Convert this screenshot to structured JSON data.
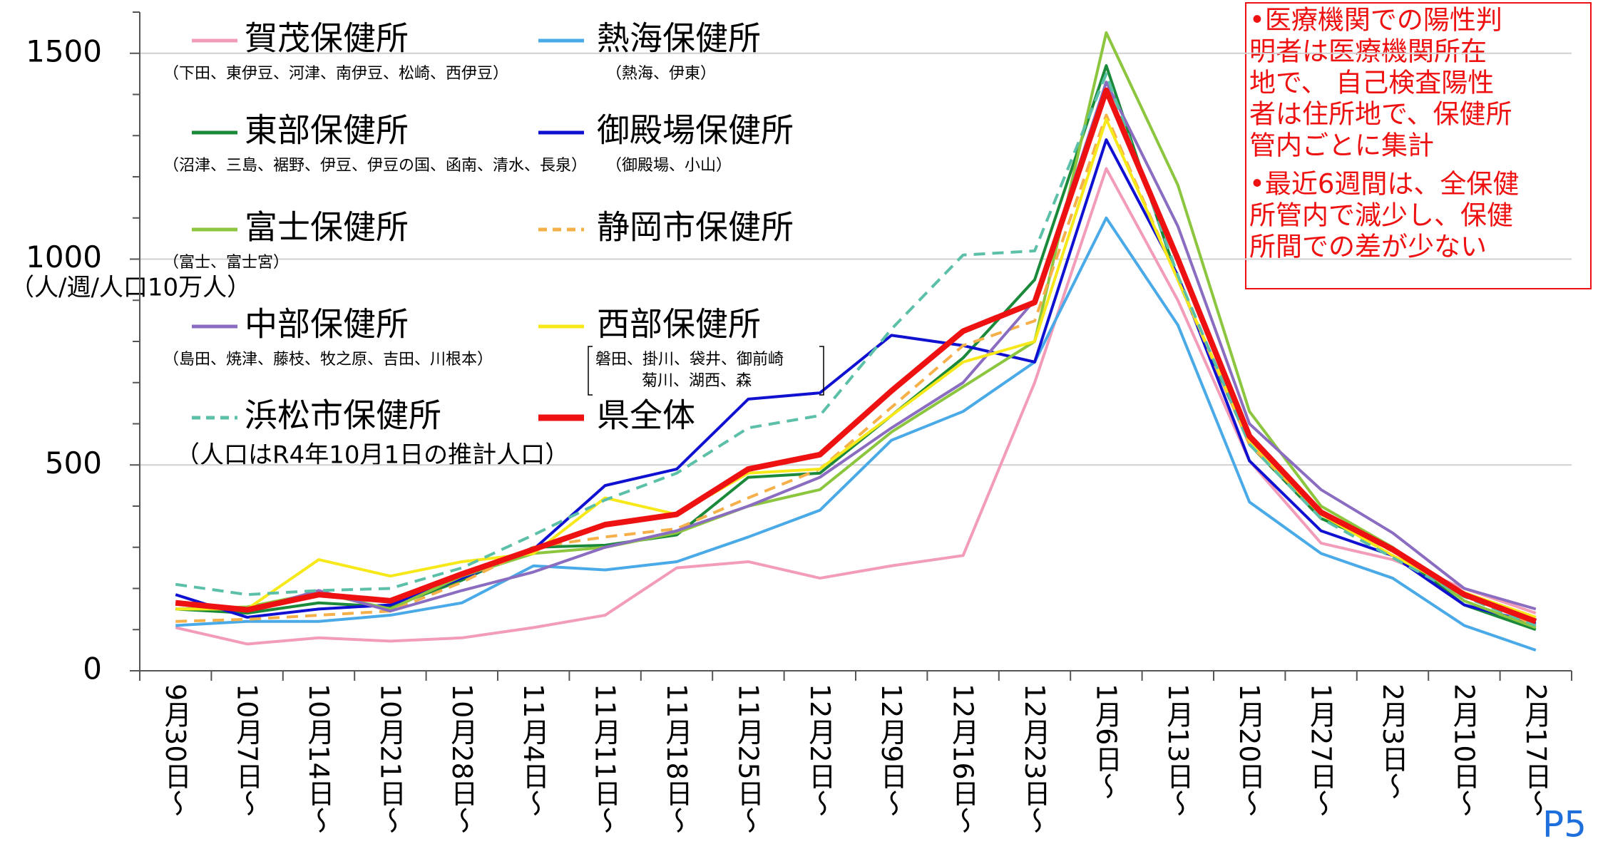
{
  "chart_data": {
    "type": "line",
    "y_label": "（人/週/人口10万人）",
    "population_note": "（人口はR4年10月1日の推計人口）",
    "page_label": "P5",
    "notes": [
      [
        "•医療機関での陽性判",
        "明者は医療機関所在",
        "地で、 自己検査陽性",
        "者は住所地で、保健所",
        "管内ごとに集計"
      ],
      [
        "•最近6週間は、全保健",
        "所管内で減少し、保健",
        "所間での差が少ない"
      ]
    ],
    "categories": [
      "9月30日～",
      "10月7日～",
      "10月14日～",
      "10月21日～",
      "10月28日～",
      "11月4日～",
      "11月11日～",
      "11月18日～",
      "11月25日～",
      "12月2日～",
      "12月9日～",
      "12月16日～",
      "12月23日～",
      "1月6日～",
      "1月13日～",
      "1月20日～",
      "1月27日～",
      "2月3日～",
      "2月10日～",
      "2月17日～"
    ],
    "ylim": [
      0,
      1600
    ],
    "yticks": [
      0,
      500,
      1000,
      1500
    ],
    "minor_yticks": [
      100,
      200,
      300,
      400,
      600,
      700,
      800,
      900,
      1100,
      1200,
      1300,
      1400,
      1600
    ],
    "grid": true,
    "series": [
      {
        "name": "賀茂保健所",
        "note": [
          "（下田、東伊豆、河津、南伊豆、松崎、西伊豆）"
        ],
        "color": "#f29cb7",
        "dash": false,
        "values": [
          105,
          65,
          80,
          72,
          80,
          105,
          135,
          250,
          265,
          225,
          255,
          280,
          700,
          1220,
          900,
          510,
          310,
          270,
          200,
          140
        ]
      },
      {
        "name": "熱海保健所",
        "note": [
          "（熱海、伊東）"
        ],
        "color": "#4aaae8",
        "dash": false,
        "values": [
          110,
          120,
          120,
          135,
          165,
          255,
          245,
          265,
          325,
          390,
          560,
          630,
          750,
          1100,
          840,
          410,
          285,
          225,
          110,
          50
        ]
      },
      {
        "name": "東部保健所",
        "note": [
          "（沼津、三島、裾野、伊豆、伊豆の国、函南、清水、長泉）"
        ],
        "color": "#1a8a3a",
        "dash": false,
        "values": [
          150,
          140,
          165,
          155,
          220,
          300,
          305,
          330,
          470,
          480,
          620,
          760,
          950,
          1470,
          950,
          550,
          370,
          295,
          160,
          100
        ]
      },
      {
        "name": "御殿場保健所",
        "note": [
          "（御殿場、小山）"
        ],
        "color": "#1010d0",
        "dash": false,
        "values": [
          185,
          130,
          150,
          160,
          225,
          295,
          450,
          490,
          660,
          675,
          815,
          790,
          750,
          1290,
          960,
          510,
          340,
          280,
          160,
          115
        ]
      },
      {
        "name": "富士保健所",
        "note": [
          "（富士、富士宮）"
        ],
        "color": "#8cc63f",
        "dash": false,
        "values": [
          150,
          155,
          190,
          150,
          230,
          285,
          300,
          335,
          400,
          440,
          580,
          690,
          800,
          1550,
          1180,
          630,
          400,
          300,
          170,
          105
        ]
      },
      {
        "name": "静岡市保健所",
        "note": [],
        "color": "#f5b04a",
        "dash": true,
        "values": [
          120,
          125,
          135,
          145,
          215,
          300,
          325,
          345,
          420,
          490,
          640,
          790,
          850,
          1350,
          950,
          550,
          380,
          290,
          190,
          110
        ]
      },
      {
        "name": "中部保健所",
        "note": [
          "（島田、焼津、藤枝、牧之原、吉田、川根本）"
        ],
        "color": "#8a6cc0",
        "dash": false,
        "values": [
          165,
          145,
          195,
          145,
          195,
          240,
          300,
          340,
          400,
          470,
          590,
          700,
          900,
          1430,
          1080,
          600,
          440,
          335,
          200,
          150
        ]
      },
      {
        "name": "西部保健所",
        "note": [
          "磐田、掛川、袋井、御前崎",
          "菊川、湖西、森"
        ],
        "color": "#f7e81a",
        "dash": false,
        "values": [
          150,
          150,
          270,
          230,
          265,
          285,
          420,
          380,
          480,
          490,
          620,
          750,
          800,
          1340,
          950,
          560,
          380,
          280,
          190,
          130
        ]
      },
      {
        "name": "浜松市保健所",
        "note": [],
        "color": "#5cc0a8",
        "dash": true,
        "values": [
          210,
          185,
          195,
          200,
          250,
          330,
          415,
          480,
          590,
          620,
          830,
          1010,
          1020,
          1450,
          960,
          550,
          370,
          275,
          180,
          110
        ]
      },
      {
        "name": "県全体",
        "note": [],
        "color": "#ee1111",
        "dash": false,
        "values": [
          165,
          148,
          185,
          170,
          235,
          295,
          355,
          380,
          490,
          525,
          680,
          825,
          895,
          1410,
          1000,
          570,
          385,
          295,
          185,
          120
        ]
      }
    ]
  }
}
